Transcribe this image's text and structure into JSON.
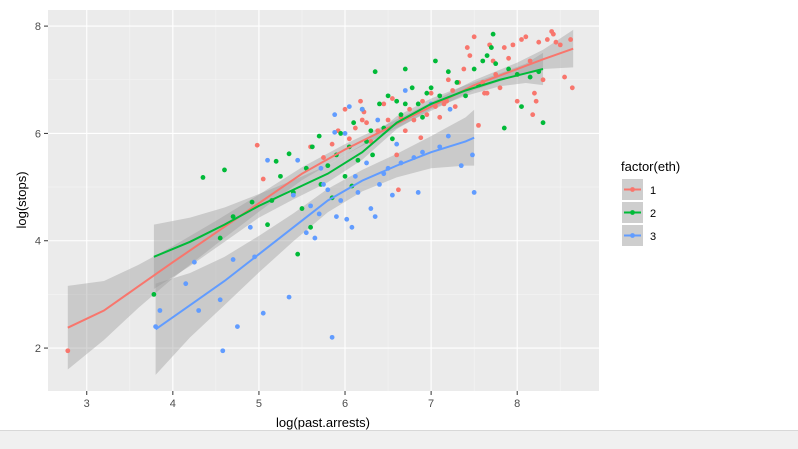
{
  "chart_data": {
    "type": "scatter",
    "title": "",
    "xlabel": "log(past.arrests)",
    "ylabel": "log(stops)",
    "xlim": [
      2.55,
      8.95
    ],
    "ylim": [
      1.2,
      8.3
    ],
    "x_ticks": [
      3,
      4,
      5,
      6,
      7,
      8
    ],
    "y_ticks": [
      2,
      4,
      6,
      8
    ],
    "grid": true,
    "legend": {
      "title": "factor(eth)",
      "position": "right"
    },
    "smoother": "loess with confidence band",
    "series": [
      {
        "name": "1",
        "color": "#F8766D",
        "points": [
          [
            2.78,
            1.95
          ],
          [
            4.98,
            5.78
          ],
          [
            5.05,
            5.15
          ],
          [
            5.6,
            5.75
          ],
          [
            5.75,
            5.55
          ],
          [
            5.85,
            5.8
          ],
          [
            5.92,
            6.05
          ],
          [
            6.0,
            6.45
          ],
          [
            6.05,
            5.9
          ],
          [
            6.12,
            6.1
          ],
          [
            6.18,
            6.6
          ],
          [
            6.22,
            6.4
          ],
          [
            6.25,
            6.2
          ],
          [
            6.3,
            5.85
          ],
          [
            6.38,
            6.05
          ],
          [
            6.45,
            6.55
          ],
          [
            6.5,
            6.25
          ],
          [
            6.55,
            6.65
          ],
          [
            6.6,
            5.6
          ],
          [
            6.65,
            6.3
          ],
          [
            6.7,
            6.05
          ],
          [
            6.75,
            6.45
          ],
          [
            6.8,
            6.25
          ],
          [
            6.9,
            6.6
          ],
          [
            6.95,
            6.35
          ],
          [
            7.0,
            6.75
          ],
          [
            7.05,
            6.5
          ],
          [
            7.1,
            6.3
          ],
          [
            7.15,
            6.55
          ],
          [
            7.2,
            7.0
          ],
          [
            7.25,
            6.8
          ],
          [
            7.28,
            6.5
          ],
          [
            7.32,
            6.95
          ],
          [
            7.38,
            7.2
          ],
          [
            7.42,
            7.6
          ],
          [
            7.45,
            7.45
          ],
          [
            7.5,
            7.8
          ],
          [
            7.55,
            6.15
          ],
          [
            7.6,
            6.95
          ],
          [
            7.62,
            6.75
          ],
          [
            7.68,
            7.65
          ],
          [
            7.72,
            7.35
          ],
          [
            7.75,
            7.1
          ],
          [
            7.8,
            6.85
          ],
          [
            7.85,
            7.6
          ],
          [
            7.9,
            7.4
          ],
          [
            7.95,
            7.65
          ],
          [
            8.0,
            7.1
          ],
          [
            8.05,
            7.75
          ],
          [
            8.1,
            7.8
          ],
          [
            8.15,
            7.35
          ],
          [
            8.2,
            6.75
          ],
          [
            8.22,
            6.6
          ],
          [
            8.25,
            7.7
          ],
          [
            8.3,
            7.0
          ],
          [
            8.35,
            7.75
          ],
          [
            8.4,
            7.9
          ],
          [
            8.42,
            7.85
          ],
          [
            8.45,
            7.7
          ],
          [
            8.5,
            7.65
          ],
          [
            8.55,
            7.05
          ],
          [
            8.62,
            7.75
          ],
          [
            8.64,
            6.85
          ],
          [
            7.18,
            6.6
          ],
          [
            6.88,
            5.92
          ],
          [
            6.62,
            4.95
          ],
          [
            7.65,
            6.75
          ],
          [
            8.0,
            6.6
          ],
          [
            8.18,
            6.35
          ],
          [
            6.2,
            6.25
          ]
        ],
        "fit": [
          [
            2.78,
            2.38
          ],
          [
            3.2,
            2.7
          ],
          [
            3.6,
            3.15
          ],
          [
            4.0,
            3.6
          ],
          [
            4.5,
            4.15
          ],
          [
            5.0,
            4.7
          ],
          [
            5.5,
            5.25
          ],
          [
            6.0,
            5.7
          ],
          [
            6.5,
            6.1
          ],
          [
            7.0,
            6.5
          ],
          [
            7.5,
            6.9
          ],
          [
            8.0,
            7.2
          ],
          [
            8.3,
            7.38
          ],
          [
            8.65,
            7.58
          ]
        ],
        "fit_se": [
          0.78,
          0.55,
          0.4,
          0.3,
          0.22,
          0.16,
          0.12,
          0.1,
          0.08,
          0.08,
          0.09,
          0.12,
          0.18,
          0.35
        ]
      },
      {
        "name": "2",
        "color": "#00BA38",
        "points": [
          [
            3.78,
            3.0
          ],
          [
            4.35,
            5.18
          ],
          [
            4.6,
            5.32
          ],
          [
            4.55,
            4.05
          ],
          [
            4.7,
            4.45
          ],
          [
            4.92,
            4.72
          ],
          [
            5.1,
            4.3
          ],
          [
            5.15,
            4.75
          ],
          [
            5.25,
            5.2
          ],
          [
            5.35,
            5.62
          ],
          [
            5.4,
            4.9
          ],
          [
            5.45,
            3.75
          ],
          [
            5.5,
            4.6
          ],
          [
            5.55,
            5.35
          ],
          [
            5.6,
            4.25
          ],
          [
            5.62,
            5.75
          ],
          [
            5.7,
            5.95
          ],
          [
            5.72,
            5.05
          ],
          [
            5.8,
            5.4
          ],
          [
            5.85,
            4.8
          ],
          [
            5.9,
            5.6
          ],
          [
            5.95,
            6.0
          ],
          [
            6.0,
            5.2
          ],
          [
            6.05,
            5.75
          ],
          [
            6.1,
            6.2
          ],
          [
            6.15,
            5.5
          ],
          [
            6.2,
            6.45
          ],
          [
            6.25,
            5.85
          ],
          [
            6.3,
            6.05
          ],
          [
            6.35,
            7.15
          ],
          [
            6.4,
            6.55
          ],
          [
            6.45,
            6.1
          ],
          [
            6.5,
            6.7
          ],
          [
            6.55,
            5.9
          ],
          [
            6.6,
            6.6
          ],
          [
            6.65,
            6.35
          ],
          [
            6.7,
            7.2
          ],
          [
            6.78,
            6.85
          ],
          [
            6.85,
            6.55
          ],
          [
            6.9,
            6.3
          ],
          [
            6.95,
            6.75
          ],
          [
            7.0,
            6.85
          ],
          [
            7.1,
            6.7
          ],
          [
            7.2,
            7.15
          ],
          [
            7.3,
            6.95
          ],
          [
            7.4,
            6.7
          ],
          [
            7.5,
            7.2
          ],
          [
            7.55,
            6.9
          ],
          [
            7.6,
            7.35
          ],
          [
            7.65,
            7.45
          ],
          [
            7.7,
            7.6
          ],
          [
            7.75,
            7.3
          ],
          [
            7.85,
            6.1
          ],
          [
            7.9,
            7.2
          ],
          [
            8.0,
            7.1
          ],
          [
            8.05,
            6.5
          ],
          [
            8.15,
            7.05
          ],
          [
            8.25,
            7.15
          ],
          [
            8.3,
            6.2
          ],
          [
            7.72,
            7.85
          ],
          [
            7.05,
            7.35
          ],
          [
            5.2,
            5.48
          ],
          [
            6.08,
            5.02
          ],
          [
            6.32,
            5.6
          ],
          [
            6.7,
            6.55
          ]
        ],
        "fit": [
          [
            3.78,
            3.7
          ],
          [
            4.2,
            3.98
          ],
          [
            4.6,
            4.3
          ],
          [
            5.0,
            4.65
          ],
          [
            5.4,
            4.95
          ],
          [
            5.8,
            5.25
          ],
          [
            6.2,
            5.65
          ],
          [
            6.6,
            6.2
          ],
          [
            7.0,
            6.55
          ],
          [
            7.4,
            6.8
          ],
          [
            7.8,
            7.0
          ],
          [
            8.1,
            7.12
          ],
          [
            8.3,
            7.2
          ]
        ],
        "fit_se": [
          0.6,
          0.45,
          0.32,
          0.22,
          0.18,
          0.16,
          0.14,
          0.12,
          0.1,
          0.1,
          0.12,
          0.18,
          0.3
        ]
      },
      {
        "name": "3",
        "color": "#619CFF",
        "points": [
          [
            3.8,
            2.4
          ],
          [
            3.85,
            2.7
          ],
          [
            4.15,
            3.2
          ],
          [
            4.25,
            3.6
          ],
          [
            4.3,
            2.7
          ],
          [
            4.55,
            2.9
          ],
          [
            4.58,
            1.95
          ],
          [
            4.7,
            3.65
          ],
          [
            4.75,
            2.4
          ],
          [
            4.9,
            4.25
          ],
          [
            4.95,
            3.7
          ],
          [
            5.05,
            2.65
          ],
          [
            5.1,
            5.5
          ],
          [
            5.35,
            2.95
          ],
          [
            5.4,
            4.85
          ],
          [
            5.45,
            5.5
          ],
          [
            5.55,
            4.15
          ],
          [
            5.6,
            4.65
          ],
          [
            5.65,
            4.05
          ],
          [
            5.7,
            4.5
          ],
          [
            5.72,
            5.35
          ],
          [
            5.75,
            5.05
          ],
          [
            5.8,
            4.95
          ],
          [
            5.85,
            2.2
          ],
          [
            5.88,
            6.35
          ],
          [
            5.9,
            4.45
          ],
          [
            5.95,
            4.75
          ],
          [
            6.0,
            6.0
          ],
          [
            6.02,
            4.4
          ],
          [
            6.05,
            6.5
          ],
          [
            6.08,
            4.25
          ],
          [
            6.12,
            5.2
          ],
          [
            6.15,
            4.9
          ],
          [
            6.2,
            6.45
          ],
          [
            6.25,
            5.45
          ],
          [
            6.3,
            4.6
          ],
          [
            6.35,
            4.45
          ],
          [
            6.4,
            5.05
          ],
          [
            6.45,
            5.25
          ],
          [
            6.5,
            5.35
          ],
          [
            6.55,
            4.85
          ],
          [
            6.6,
            5.8
          ],
          [
            6.65,
            5.45
          ],
          [
            6.7,
            6.8
          ],
          [
            6.8,
            5.55
          ],
          [
            6.9,
            5.65
          ],
          [
            7.0,
            6.55
          ],
          [
            7.1,
            5.75
          ],
          [
            7.2,
            5.95
          ],
          [
            7.35,
            5.4
          ],
          [
            7.48,
            5.6
          ],
          [
            7.5,
            4.9
          ],
          [
            6.85,
            4.9
          ],
          [
            5.88,
            6.02
          ],
          [
            6.38,
            6.25
          ],
          [
            7.22,
            6.45
          ]
        ],
        "fit": [
          [
            3.8,
            2.35
          ],
          [
            4.2,
            2.8
          ],
          [
            4.6,
            3.25
          ],
          [
            5.0,
            3.75
          ],
          [
            5.4,
            4.25
          ],
          [
            5.8,
            4.75
          ],
          [
            6.2,
            5.12
          ],
          [
            6.6,
            5.4
          ],
          [
            7.0,
            5.65
          ],
          [
            7.4,
            5.85
          ],
          [
            7.5,
            5.92
          ]
        ],
        "fit_se": [
          0.85,
          0.6,
          0.45,
          0.34,
          0.26,
          0.22,
          0.2,
          0.22,
          0.3,
          0.45,
          0.52
        ]
      }
    ]
  }
}
